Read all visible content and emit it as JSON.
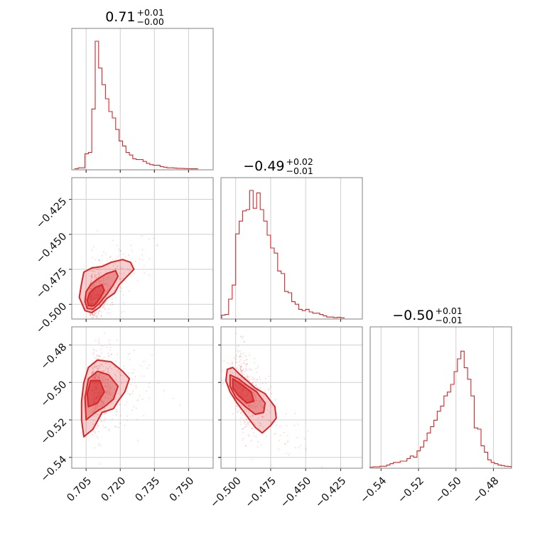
{
  "chart_data": {
    "type": "corner",
    "color": "#d62728",
    "titles": [
      {
        "value": "0.71",
        "plus": "+0.01",
        "minus": "−0.00"
      },
      {
        "value": "−0.49",
        "plus": "+0.02",
        "minus": "−0.01"
      },
      {
        "value": "−0.50",
        "plus": "+0.01",
        "minus": "−0.01"
      }
    ],
    "parameters": [
      {
        "range": [
          0.6987,
          0.7608
        ],
        "ticks": [
          0.705,
          0.72,
          0.735,
          0.75
        ],
        "tick_labels": [
          "0.705",
          "0.720",
          "0.735",
          "0.750"
        ]
      },
      {
        "range": [
          -0.5105,
          -0.4095
        ],
        "ticks": [
          -0.5,
          -0.475,
          -0.45,
          -0.425
        ],
        "tick_labels": [
          "−0.500",
          "−0.475",
          "−0.450",
          "−0.425"
        ]
      },
      {
        "range": [
          -0.5458,
          -0.4703
        ],
        "ticks": [
          -0.54,
          -0.52,
          -0.5,
          -0.48
        ],
        "tick_labels": [
          "−0.54",
          "−0.52",
          "−0.50",
          "−0.48"
        ]
      }
    ],
    "histograms": [
      {
        "param": 0,
        "start": 0.7,
        "bin_width": 0.0015,
        "counts": [
          0.003,
          0.01,
          0.01,
          0.12,
          0.13,
          0.47,
          1.0,
          0.79,
          0.66,
          0.55,
          0.45,
          0.4,
          0.31,
          0.22,
          0.18,
          0.13,
          0.11,
          0.08,
          0.075,
          0.075,
          0.06,
          0.045,
          0.035,
          0.03,
          0.03,
          0.02,
          0.015,
          0.01,
          0.01,
          0.008,
          0.006,
          0.005,
          0.004,
          0.003,
          0.002,
          0.002
        ]
      },
      {
        "param": 1,
        "start": -0.51,
        "bin_width": 0.0025,
        "counts": [
          0.025,
          0.03,
          0.15,
          0.26,
          0.66,
          0.76,
          0.84,
          0.85,
          1.0,
          0.86,
          0.98,
          0.85,
          0.76,
          0.65,
          0.55,
          0.51,
          0.37,
          0.35,
          0.21,
          0.2,
          0.13,
          0.11,
          0.07,
          0.06,
          0.07,
          0.05,
          0.04,
          0.04,
          0.03,
          0.02,
          0.01,
          0.01,
          0.005,
          0.008,
          0.004
        ]
      },
      {
        "param": 2,
        "start": -0.546,
        "bin_width": 0.0018,
        "counts": [
          0.003,
          0.005,
          0.005,
          0.01,
          0.01,
          0.02,
          0.03,
          0.04,
          0.04,
          0.05,
          0.05,
          0.07,
          0.09,
          0.08,
          0.13,
          0.16,
          0.21,
          0.27,
          0.32,
          0.37,
          0.44,
          0.48,
          0.56,
          0.59,
          0.65,
          0.75,
          0.85,
          0.91,
          0.78,
          0.69,
          0.56,
          0.31,
          0.3,
          0.17,
          0.12,
          0.06,
          0.04,
          0.03,
          0.02,
          0.015,
          0.01,
          0.008
        ]
      }
    ],
    "joint": [
      {
        "x": 0,
        "y": 1,
        "center": [
          0.7066,
          -0.4985
        ],
        "spread": [
          0.004,
          0.01
        ],
        "levels": [
          [
            [
              0.7045,
              -0.5045
            ],
            [
              0.7075,
              -0.506
            ],
            [
              0.711,
              -0.502
            ],
            [
              0.714,
              -0.496
            ],
            [
              0.7175,
              -0.492
            ],
            [
              0.7195,
              -0.486
            ],
            [
              0.723,
              -0.48
            ],
            [
              0.726,
              -0.475
            ],
            [
              0.7245,
              -0.47
            ],
            [
              0.721,
              -0.468
            ],
            [
              0.716,
              -0.47
            ],
            [
              0.712,
              -0.473
            ],
            [
              0.7075,
              -0.474
            ],
            [
              0.704,
              -0.477
            ],
            [
              0.703,
              -0.485
            ],
            [
              0.702,
              -0.495
            ]
          ],
          [
            [
              0.7055,
              -0.503
            ],
            [
              0.708,
              -0.5035
            ],
            [
              0.711,
              -0.499
            ],
            [
              0.714,
              -0.493
            ],
            [
              0.717,
              -0.486
            ],
            [
              0.719,
              -0.48
            ],
            [
              0.718,
              -0.476
            ],
            [
              0.714,
              -0.478
            ],
            [
              0.71,
              -0.482
            ],
            [
              0.707,
              -0.486
            ],
            [
              0.705,
              -0.491
            ],
            [
              0.7045,
              -0.498
            ]
          ],
          [
            [
              0.706,
              -0.501
            ],
            [
              0.7085,
              -0.501
            ],
            [
              0.711,
              -0.496
            ],
            [
              0.713,
              -0.49
            ],
            [
              0.712,
              -0.486
            ],
            [
              0.709,
              -0.488
            ],
            [
              0.7065,
              -0.492
            ],
            [
              0.7055,
              -0.497
            ]
          ]
        ]
      },
      {
        "x": 0,
        "y": 2,
        "center": [
          0.7075,
          -0.503
        ],
        "spread": [
          0.005,
          0.009
        ],
        "levels": [
          [
            [
              0.704,
              -0.529
            ],
            [
              0.708,
              -0.525
            ],
            [
              0.712,
              -0.516
            ],
            [
              0.717,
              -0.514
            ],
            [
              0.719,
              -0.51
            ],
            [
              0.722,
              -0.505
            ],
            [
              0.724,
              -0.498
            ],
            [
              0.721,
              -0.494
            ],
            [
              0.716,
              -0.489
            ],
            [
              0.71,
              -0.488
            ],
            [
              0.706,
              -0.492
            ],
            [
              0.704,
              -0.5
            ],
            [
              0.703,
              -0.51
            ],
            [
              0.703,
              -0.52
            ]
          ],
          [
            [
              0.705,
              -0.52
            ],
            [
              0.709,
              -0.516
            ],
            [
              0.713,
              -0.513
            ],
            [
              0.717,
              -0.509
            ],
            [
              0.719,
              -0.502
            ],
            [
              0.715,
              -0.496
            ],
            [
              0.71,
              -0.494
            ],
            [
              0.706,
              -0.498
            ],
            [
              0.7045,
              -0.508
            ]
          ],
          [
            [
              0.706,
              -0.513
            ],
            [
              0.71,
              -0.511
            ],
            [
              0.713,
              -0.505
            ],
            [
              0.711,
              -0.499
            ],
            [
              0.707,
              -0.499
            ],
            [
              0.7055,
              -0.506
            ]
          ]
        ]
      },
      {
        "x": 1,
        "y": 2,
        "center": [
          -0.497,
          -0.502
        ],
        "spread": [
          0.008,
          0.009
        ],
        "levels": [
          [
            [
              -0.506,
              -0.493
            ],
            [
              -0.502,
              -0.492
            ],
            [
              -0.498,
              -0.495
            ],
            [
              -0.492,
              -0.499
            ],
            [
              -0.486,
              -0.503
            ],
            [
              -0.479,
              -0.506
            ],
            [
              -0.472,
              -0.513
            ],
            [
              -0.471,
              -0.519
            ],
            [
              -0.475,
              -0.523
            ],
            [
              -0.481,
              -0.527
            ],
            [
              -0.486,
              -0.524
            ],
            [
              -0.492,
              -0.518
            ],
            [
              -0.499,
              -0.511
            ],
            [
              -0.504,
              -0.505
            ],
            [
              -0.507,
              -0.499
            ]
          ],
          [
            [
              -0.504,
              -0.496
            ],
            [
              -0.498,
              -0.498
            ],
            [
              -0.491,
              -0.502
            ],
            [
              -0.485,
              -0.505
            ],
            [
              -0.479,
              -0.511
            ],
            [
              -0.48,
              -0.516
            ],
            [
              -0.486,
              -0.517
            ],
            [
              -0.493,
              -0.513
            ],
            [
              -0.5,
              -0.508
            ],
            [
              -0.504,
              -0.502
            ]
          ],
          [
            [
              -0.502,
              -0.498
            ],
            [
              -0.496,
              -0.501
            ],
            [
              -0.489,
              -0.505
            ],
            [
              -0.487,
              -0.51
            ],
            [
              -0.492,
              -0.511
            ],
            [
              -0.498,
              -0.507
            ],
            [
              -0.502,
              -0.503
            ]
          ]
        ]
      }
    ]
  }
}
